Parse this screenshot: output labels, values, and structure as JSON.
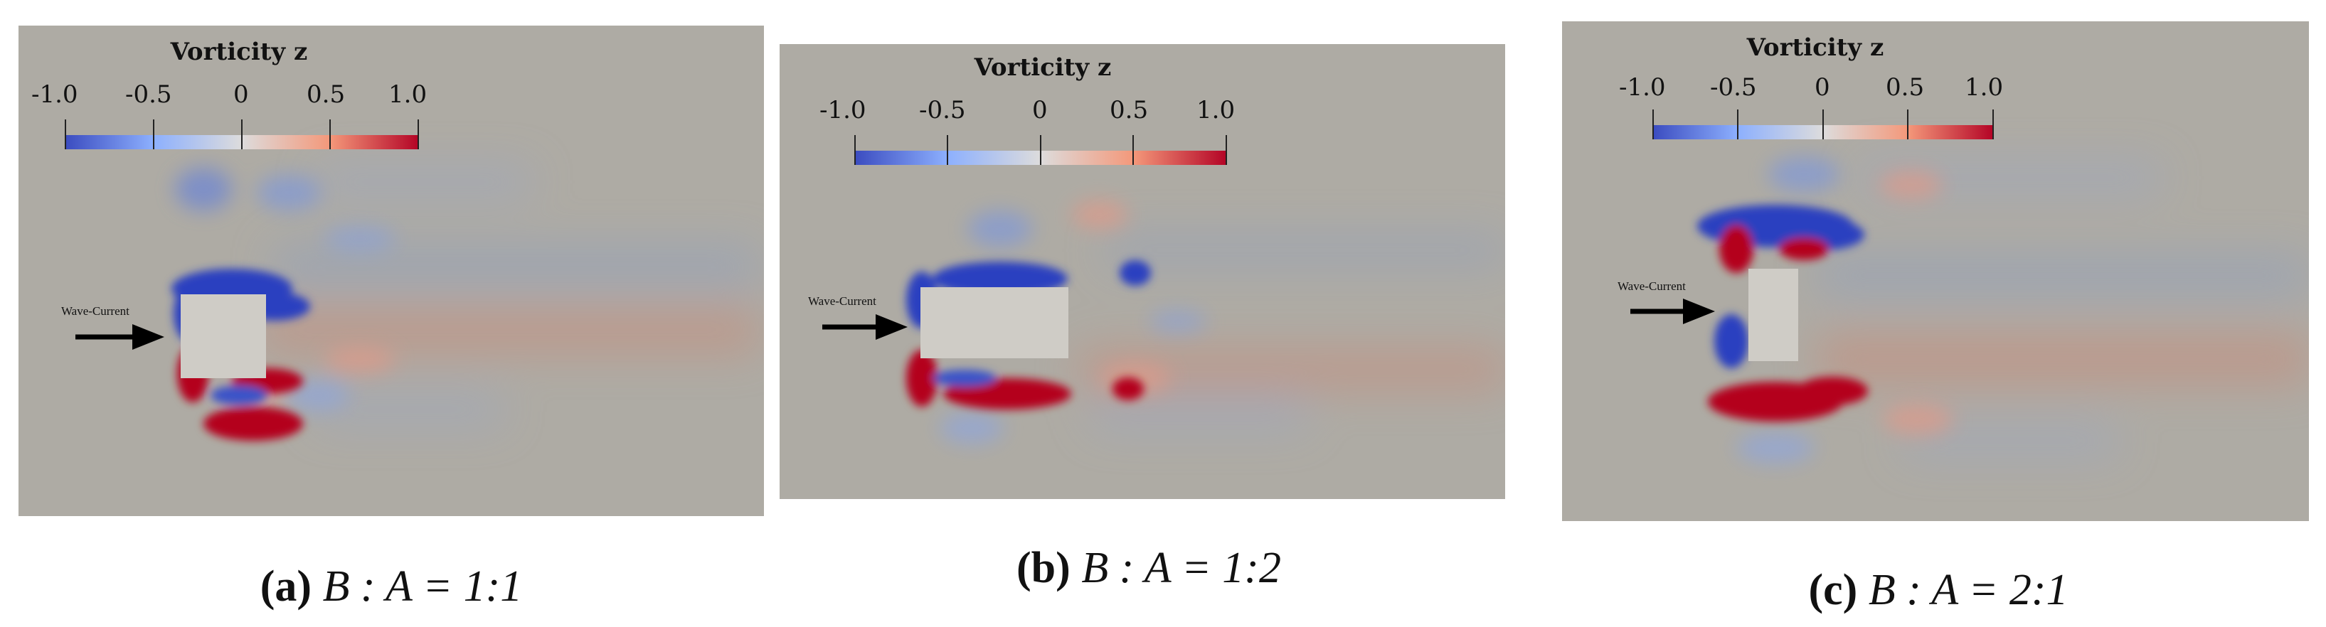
{
  "colorbar": {
    "title": "Vorticity z",
    "ticks": [
      "-1.0",
      "-0.5",
      "0",
      "0.5",
      "1.0"
    ],
    "colors": {
      "negative": "#3b4cc0",
      "zero": "#dddcdc",
      "positive": "#b40426"
    }
  },
  "arrow_label": "Wave-Current",
  "background_color": "#aeaba4",
  "obstacle_color": "#cfccc6",
  "panels": [
    {
      "letter": "(a)",
      "ratio": "B : A = 1:1"
    },
    {
      "letter": "(b)",
      "ratio": "B : A = 1:2"
    },
    {
      "letter": "(c)",
      "ratio": "B : A = 2:1"
    }
  ]
}
